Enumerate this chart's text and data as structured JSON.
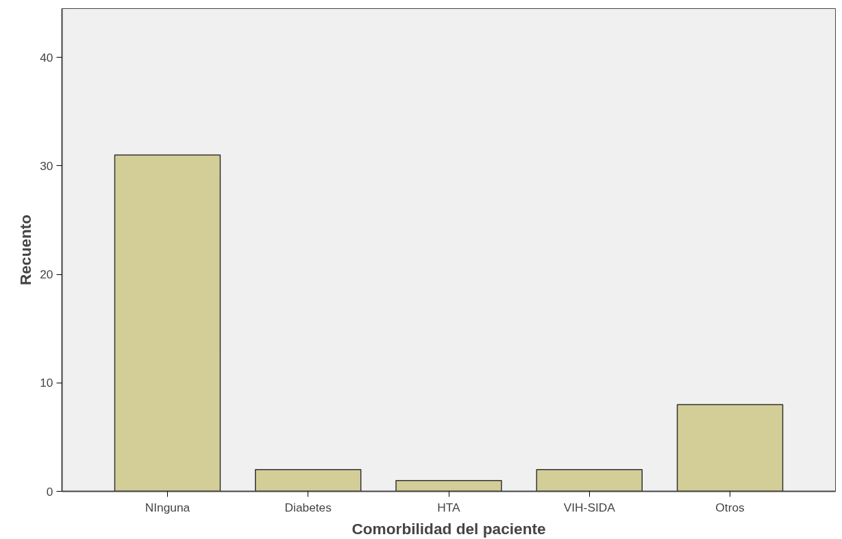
{
  "chart_data": {
    "type": "bar",
    "xlabel": "Comorbilidad del paciente",
    "ylabel": "Recuento",
    "categories": [
      "NInguna",
      "Diabetes",
      "HTA",
      "VIH-SIDA",
      "Otros"
    ],
    "values": [
      31,
      2,
      1,
      2,
      8
    ],
    "color": "#d3ce97",
    "ylim": [
      0,
      44.5
    ],
    "yticks": [
      0,
      10,
      20,
      30,
      40
    ],
    "grid": false
  }
}
